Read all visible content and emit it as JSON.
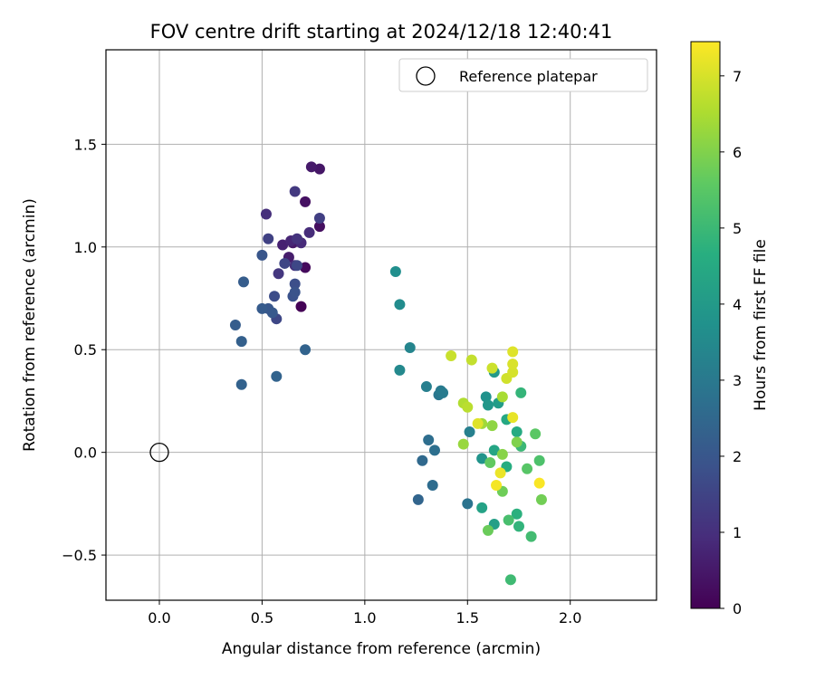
{
  "chart_data": {
    "type": "scatter",
    "title": "FOV centre drift starting at 2024/12/18 12:40:41",
    "xlabel": "Angular distance from reference (arcmin)",
    "ylabel": "Rotation from reference (arcmin)",
    "xlim": [
      -0.26,
      2.42
    ],
    "ylim": [
      -0.72,
      1.96
    ],
    "xticks": [
      0.0,
      0.5,
      1.0,
      1.5,
      2.0
    ],
    "yticks": [
      -0.5,
      0.0,
      0.5,
      1.0,
      1.5
    ],
    "grid": true,
    "legend": {
      "placement": "top-right",
      "entries": [
        "Reference platepar"
      ]
    },
    "reference_point": {
      "name": "Reference platepar",
      "x": 0.0,
      "y": 0.0,
      "marker": "open-circle"
    },
    "colorbar": {
      "label": "Hours from first FF file",
      "min": 0,
      "max": 7.45,
      "ticks": [
        0,
        1,
        2,
        3,
        4,
        5,
        6,
        7
      ],
      "colormap": "viridis"
    },
    "series": [
      {
        "marker": "filled-circle",
        "points": [
          {
            "x": 0.69,
            "y": 0.71,
            "t": 0.05
          },
          {
            "x": 0.71,
            "y": 0.9,
            "t": 0.2
          },
          {
            "x": 0.78,
            "y": 1.1,
            "t": 0.3
          },
          {
            "x": 0.71,
            "y": 1.22,
            "t": 0.35
          },
          {
            "x": 0.78,
            "y": 1.38,
            "t": 0.45
          },
          {
            "x": 0.74,
            "y": 1.39,
            "t": 0.55
          },
          {
            "x": 0.65,
            "y": 1.02,
            "t": 0.5
          },
          {
            "x": 0.63,
            "y": 0.95,
            "t": 0.6
          },
          {
            "x": 0.6,
            "y": 1.01,
            "t": 0.7
          },
          {
            "x": 0.64,
            "y": 1.03,
            "t": 0.8
          },
          {
            "x": 0.69,
            "y": 1.02,
            "t": 0.9
          },
          {
            "x": 0.73,
            "y": 1.07,
            "t": 0.95
          },
          {
            "x": 0.52,
            "y": 1.16,
            "t": 1.0
          },
          {
            "x": 0.66,
            "y": 0.91,
            "t": 1.0
          },
          {
            "x": 0.67,
            "y": 1.04,
            "t": 1.1
          },
          {
            "x": 0.58,
            "y": 0.87,
            "t": 1.2
          },
          {
            "x": 0.66,
            "y": 1.27,
            "t": 1.25
          },
          {
            "x": 0.78,
            "y": 1.14,
            "t": 1.4
          },
          {
            "x": 0.53,
            "y": 1.04,
            "t": 1.45
          },
          {
            "x": 0.61,
            "y": 0.92,
            "t": 1.55
          },
          {
            "x": 0.67,
            "y": 0.91,
            "t": 1.6
          },
          {
            "x": 0.57,
            "y": 0.65,
            "t": 1.6
          },
          {
            "x": 0.56,
            "y": 0.76,
            "t": 1.75
          },
          {
            "x": 0.66,
            "y": 0.82,
            "t": 1.8
          },
          {
            "x": 0.65,
            "y": 0.76,
            "t": 1.9
          },
          {
            "x": 0.66,
            "y": 0.78,
            "t": 1.95
          },
          {
            "x": 0.5,
            "y": 0.96,
            "t": 2.0
          },
          {
            "x": 0.53,
            "y": 0.7,
            "t": 2.05
          },
          {
            "x": 0.55,
            "y": 0.68,
            "t": 2.1
          },
          {
            "x": 0.5,
            "y": 0.7,
            "t": 2.15
          },
          {
            "x": 0.41,
            "y": 0.83,
            "t": 2.2
          },
          {
            "x": 0.37,
            "y": 0.62,
            "t": 2.2
          },
          {
            "x": 0.4,
            "y": 0.54,
            "t": 2.3
          },
          {
            "x": 0.4,
            "y": 0.33,
            "t": 2.35
          },
          {
            "x": 0.57,
            "y": 0.37,
            "t": 2.4
          },
          {
            "x": 0.71,
            "y": 0.5,
            "t": 2.4
          },
          {
            "x": 1.26,
            "y": -0.23,
            "t": 2.45
          },
          {
            "x": 1.28,
            "y": -0.04,
            "t": 2.55
          },
          {
            "x": 1.33,
            "y": -0.16,
            "t": 2.65
          },
          {
            "x": 1.31,
            "y": 0.06,
            "t": 2.7
          },
          {
            "x": 1.34,
            "y": 0.01,
            "t": 2.75
          },
          {
            "x": 1.5,
            "y": -0.25,
            "t": 2.85
          },
          {
            "x": 1.36,
            "y": 0.28,
            "t": 2.95
          },
          {
            "x": 1.37,
            "y": 0.3,
            "t": 3.05
          },
          {
            "x": 1.38,
            "y": 0.29,
            "t": 3.1
          },
          {
            "x": 1.3,
            "y": 0.32,
            "t": 3.2
          },
          {
            "x": 1.51,
            "y": 0.1,
            "t": 3.25
          },
          {
            "x": 1.22,
            "y": 0.51,
            "t": 3.4
          },
          {
            "x": 1.17,
            "y": 0.4,
            "t": 3.5
          },
          {
            "x": 1.17,
            "y": 0.72,
            "t": 3.6
          },
          {
            "x": 1.15,
            "y": 0.88,
            "t": 3.7
          },
          {
            "x": 1.59,
            "y": 0.27,
            "t": 3.8
          },
          {
            "x": 1.57,
            "y": -0.03,
            "t": 3.85
          },
          {
            "x": 1.6,
            "y": 0.23,
            "t": 3.95
          },
          {
            "x": 1.63,
            "y": 0.39,
            "t": 4.0
          },
          {
            "x": 1.65,
            "y": 0.24,
            "t": 4.1
          },
          {
            "x": 1.63,
            "y": -0.35,
            "t": 4.2
          },
          {
            "x": 1.57,
            "y": -0.27,
            "t": 4.3
          },
          {
            "x": 1.63,
            "y": 0.01,
            "t": 4.4
          },
          {
            "x": 1.69,
            "y": 0.16,
            "t": 4.5
          },
          {
            "x": 1.74,
            "y": 0.1,
            "t": 4.55
          },
          {
            "x": 1.69,
            "y": -0.07,
            "t": 4.65
          },
          {
            "x": 1.74,
            "y": -0.3,
            "t": 4.75
          },
          {
            "x": 1.75,
            "y": -0.36,
            "t": 4.85
          },
          {
            "x": 1.76,
            "y": 0.29,
            "t": 4.9
          },
          {
            "x": 1.76,
            "y": 0.03,
            "t": 5.0
          },
          {
            "x": 1.71,
            "y": -0.62,
            "t": 5.1
          },
          {
            "x": 1.81,
            "y": -0.41,
            "t": 5.15
          },
          {
            "x": 1.7,
            "y": -0.33,
            "t": 5.25
          },
          {
            "x": 1.85,
            "y": -0.04,
            "t": 5.35
          },
          {
            "x": 1.79,
            "y": -0.08,
            "t": 5.5
          },
          {
            "x": 1.83,
            "y": 0.09,
            "t": 5.55
          },
          {
            "x": 1.61,
            "y": -0.05,
            "t": 5.65
          },
          {
            "x": 1.6,
            "y": -0.38,
            "t": 5.75
          },
          {
            "x": 1.67,
            "y": -0.19,
            "t": 5.8
          },
          {
            "x": 1.86,
            "y": -0.23,
            "t": 5.85
          },
          {
            "x": 1.74,
            "y": 0.05,
            "t": 6.0
          },
          {
            "x": 1.67,
            "y": -0.01,
            "t": 6.1
          },
          {
            "x": 1.62,
            "y": 0.13,
            "t": 6.2
          },
          {
            "x": 1.48,
            "y": 0.04,
            "t": 6.3
          },
          {
            "x": 1.57,
            "y": 0.14,
            "t": 6.4
          },
          {
            "x": 1.67,
            "y": 0.27,
            "t": 6.5
          },
          {
            "x": 1.48,
            "y": 0.24,
            "t": 6.6
          },
          {
            "x": 1.5,
            "y": 0.22,
            "t": 6.7
          },
          {
            "x": 1.52,
            "y": 0.45,
            "t": 6.8
          },
          {
            "x": 1.42,
            "y": 0.47,
            "t": 6.85
          },
          {
            "x": 1.62,
            "y": 0.41,
            "t": 6.9
          },
          {
            "x": 1.69,
            "y": 0.36,
            "t": 6.95
          },
          {
            "x": 1.72,
            "y": 0.39,
            "t": 7.0
          },
          {
            "x": 1.72,
            "y": 0.43,
            "t": 7.05
          },
          {
            "x": 1.72,
            "y": 0.49,
            "t": 7.1
          },
          {
            "x": 1.55,
            "y": 0.14,
            "t": 7.1
          },
          {
            "x": 1.72,
            "y": 0.17,
            "t": 7.2
          },
          {
            "x": 1.66,
            "y": -0.1,
            "t": 7.25
          },
          {
            "x": 1.64,
            "y": -0.16,
            "t": 7.35
          },
          {
            "x": 1.85,
            "y": -0.15,
            "t": 7.4
          }
        ]
      }
    ]
  }
}
